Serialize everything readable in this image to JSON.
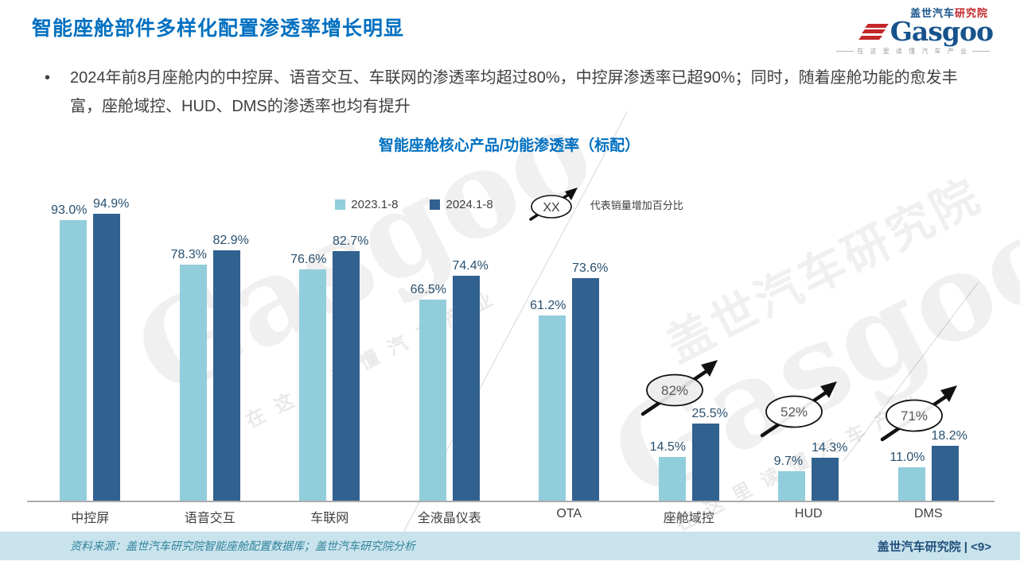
{
  "page": {
    "title": "智能座舱部件多样化配置渗透率增长明显",
    "bullet_marker": "•",
    "bullet": "2024年前8月座舱内的中控屏、语音交互、车联网的渗透率均超过80%，中控屏渗透率已超90%；同时，随着座舱功能的愈发丰富，座舱域控、HUD、DMS的渗透率也均有提升"
  },
  "logo": {
    "cn_main": "盖世汽车",
    "cn_sub": "研究院",
    "latin": "Gasgoo",
    "tagline": "在 这 里 读 懂 汽 车 产 业"
  },
  "chart_data": {
    "type": "bar",
    "title": "智能座舱核心产品/功能渗透率（标配）",
    "categories": [
      "中控屏",
      "语音交互",
      "车联网",
      "全液晶仪表",
      "OTA",
      "座舱域控",
      "HUD",
      "DMS"
    ],
    "series": [
      {
        "name": "2023.1-8",
        "color": "#92CDDC",
        "values": [
          93.0,
          78.3,
          76.6,
          66.5,
          61.2,
          14.5,
          9.7,
          11.0
        ]
      },
      {
        "name": "2024.1-8",
        "color": "#31618F",
        "values": [
          94.9,
          82.9,
          82.7,
          74.4,
          73.6,
          25.5,
          14.3,
          18.2
        ]
      }
    ],
    "value_suffix": "%",
    "ylim": [
      0,
      100
    ],
    "grid": false,
    "legend_position": "top-center",
    "legend_note_symbol": "XX",
    "legend_note_text": "代表销量增加百分比",
    "annotations": [
      {
        "category": "座舱域控",
        "label": "82%",
        "fill": "#EDEDED"
      },
      {
        "category": "HUD",
        "label": "52%",
        "fill": "#FFFFFF"
      },
      {
        "category": "DMS",
        "label": "71%",
        "fill": "#FFFFFF"
      }
    ]
  },
  "watermark": {
    "cjk": "盖世汽车研究院",
    "latin": "Gasgoo",
    "slogan": "在这里读懂汽车产业"
  },
  "footer": {
    "source": "资料来源：盖世汽车研究院智能座舱配置数据库；盖世汽车研究院分析",
    "right": "盖世汽车研究院 | <9>"
  }
}
